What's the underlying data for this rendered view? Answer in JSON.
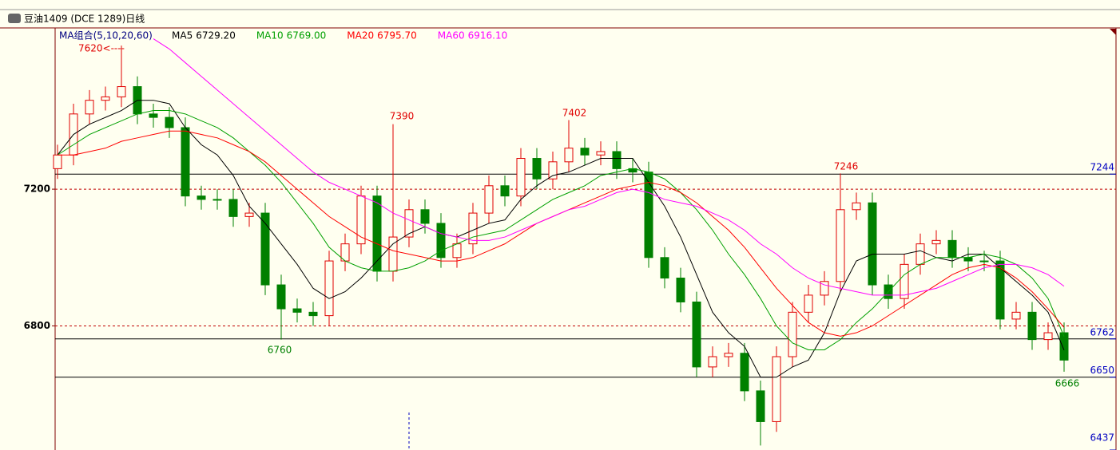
{
  "chart_data": {
    "type": "candlestick",
    "title": "豆油1409 (DCE 1289)日线",
    "legend_title": "MA组合(5,10,20,60)",
    "ylim": [
      6437,
      7667
    ],
    "yticks": [
      7200,
      6800
    ],
    "right_ticks": [
      7244,
      6762,
      6650,
      6437
    ],
    "solid_levels": [
      7244,
      6762,
      6650
    ],
    "dashed_levels": [
      7200,
      6800
    ],
    "up_color": "#e00000",
    "down_color": "#008000",
    "open": [
      7260,
      7300,
      7420,
      7460,
      7470,
      7500,
      7420,
      7410,
      7380,
      7180,
      7170,
      7170,
      7120,
      7130,
      6920,
      6850,
      6840,
      6830,
      6990,
      7040,
      7180,
      6960,
      7060,
      7140,
      7100,
      7000,
      7040,
      7130,
      7210,
      7180,
      7290,
      7230,
      7280,
      7320,
      7300,
      7310,
      7260,
      7250,
      7000,
      6940,
      6870,
      6680,
      6710,
      6720,
      6610,
      6520,
      6710,
      6840,
      6890,
      6930,
      7140,
      7160,
      6920,
      6880,
      6980,
      7040,
      7050,
      7000,
      6990,
      6990,
      6820,
      6840,
      6760,
      6780
    ],
    "high": [
      7330,
      7450,
      7490,
      7500,
      7620,
      7530,
      7450,
      7440,
      7410,
      7210,
      7200,
      7200,
      7160,
      7160,
      6950,
      6880,
      6870,
      7020,
      7070,
      7210,
      7210,
      7390,
      7170,
      7170,
      7130,
      7070,
      7160,
      7240,
      7240,
      7320,
      7320,
      7310,
      7402,
      7350,
      7340,
      7340,
      7290,
      7280,
      7030,
      6970,
      6900,
      6740,
      6750,
      6750,
      6640,
      6740,
      6870,
      6920,
      6960,
      7246,
      7190,
      7190,
      6950,
      7010,
      7070,
      7080,
      7080,
      7030,
      7020,
      7020,
      6870,
      6870,
      6810,
      6810
    ],
    "low": [
      7230,
      7270,
      7390,
      7430,
      7440,
      7390,
      7380,
      7350,
      7150,
      7140,
      7140,
      7090,
      7090,
      6890,
      6760,
      6810,
      6800,
      6800,
      6960,
      7010,
      6930,
      6930,
      7030,
      7070,
      6970,
      6970,
      7010,
      7100,
      7150,
      7150,
      7200,
      7200,
      7250,
      7270,
      7270,
      7230,
      7220,
      6970,
      6910,
      6840,
      6650,
      6650,
      6680,
      6580,
      6450,
      6490,
      6680,
      6810,
      6860,
      6900,
      7110,
      6890,
      6850,
      6850,
      6950,
      7010,
      6970,
      6960,
      6960,
      6790,
      6790,
      6730,
      6730,
      6666
    ],
    "close": [
      7300,
      7420,
      7460,
      7470,
      7500,
      7420,
      7410,
      7380,
      7180,
      7170,
      7170,
      7120,
      7130,
      6920,
      6850,
      6840,
      6830,
      6990,
      7040,
      7180,
      6960,
      7060,
      7140,
      7100,
      7000,
      7040,
      7130,
      7210,
      7180,
      7290,
      7230,
      7280,
      7320,
      7300,
      7310,
      7260,
      7250,
      7000,
      6940,
      6870,
      6680,
      6710,
      6720,
      6610,
      6520,
      6710,
      6840,
      6890,
      6930,
      7140,
      7160,
      6920,
      6880,
      6980,
      7040,
      7050,
      7000,
      6990,
      6990,
      6820,
      6840,
      6760,
      6780,
      6700
    ],
    "series": [
      {
        "name": "MA5",
        "value_label": "6729.20",
        "color": "#000000",
        "values": [
          7300,
          7360,
          7390,
          7410,
          7430,
          7460,
          7460,
          7450,
          7380,
          7330,
          7300,
          7240,
          7150,
          7100,
          7040,
          6980,
          6910,
          6880,
          6900,
          6940,
          6990,
          7040,
          7070,
          7090,
          7070,
          7060,
          7080,
          7100,
          7110,
          7170,
          7210,
          7240,
          7250,
          7270,
          7290,
          7290,
          7290,
          7220,
          7150,
          7060,
          6950,
          6840,
          6780,
          6740,
          6650,
          6650,
          6680,
          6700,
          6780,
          6900,
          6990,
          7010,
          7010,
          7010,
          7020,
          7000,
          6990,
          7010,
          7010,
          6970,
          6930,
          6890,
          6840,
          6729.2
        ]
      },
      {
        "name": "MA10",
        "value_label": "6769.00",
        "color": "#00a000",
        "values": [
          7300,
          7330,
          7360,
          7380,
          7400,
          7420,
          7430,
          7430,
          7420,
          7400,
          7380,
          7350,
          7310,
          7270,
          7220,
          7160,
          7100,
          7030,
          6990,
          6970,
          6960,
          6960,
          6970,
          6990,
          7020,
          7040,
          7060,
          7070,
          7080,
          7110,
          7140,
          7170,
          7190,
          7210,
          7240,
          7250,
          7260,
          7250,
          7230,
          7190,
          7140,
          7080,
          7010,
          6950,
          6880,
          6800,
          6750,
          6730,
          6730,
          6760,
          6810,
          6850,
          6900,
          6950,
          6980,
          7000,
          7000,
          7000,
          7010,
          7000,
          6980,
          6940,
          6880,
          6769
        ]
      },
      {
        "name": "MA20",
        "value_label": "6795.70",
        "color": "#ff0000",
        "values": [
          7300,
          7300,
          7310,
          7320,
          7340,
          7350,
          7360,
          7370,
          7370,
          7360,
          7350,
          7330,
          7310,
          7280,
          7240,
          7200,
          7160,
          7120,
          7090,
          7060,
          7040,
          7020,
          7010,
          7000,
          6990,
          6990,
          7000,
          7020,
          7040,
          7070,
          7100,
          7120,
          7140,
          7160,
          7180,
          7200,
          7210,
          7220,
          7210,
          7190,
          7160,
          7120,
          7080,
          7030,
          6970,
          6910,
          6860,
          6810,
          6780,
          6770,
          6780,
          6800,
          6830,
          6860,
          6890,
          6920,
          6950,
          6970,
          6980,
          6970,
          6940,
          6900,
          6850,
          6795.7
        ]
      },
      {
        "name": "MA60",
        "value_label": "6916.10",
        "color": "#ff00ff",
        "values": [
          null,
          null,
          null,
          null,
          null,
          null,
          7640,
          7610,
          7570,
          7530,
          7490,
          7450,
          7410,
          7370,
          7330,
          7290,
          7250,
          7220,
          7200,
          7180,
          7160,
          7130,
          7110,
          7090,
          7070,
          7060,
          7050,
          7050,
          7060,
          7080,
          7100,
          7120,
          7140,
          7150,
          7170,
          7190,
          7200,
          7190,
          7170,
          7160,
          7150,
          7130,
          7110,
          7080,
          7040,
          7010,
          6970,
          6940,
          6920,
          6910,
          6900,
          6890,
          6890,
          6890,
          6900,
          6910,
          6930,
          6950,
          6970,
          6980,
          6980,
          6970,
          6950,
          6916.1
        ]
      }
    ],
    "annotations": [
      {
        "text": "7620<----",
        "color": "#e00000"
      },
      {
        "text": "7390",
        "color": "#e00000"
      },
      {
        "text": "7402",
        "color": "#e00000"
      },
      {
        "text": "7246",
        "color": "#e00000"
      },
      {
        "text": "6760",
        "color": "#008000"
      },
      {
        "text": "6666",
        "color": "#008000"
      }
    ]
  }
}
